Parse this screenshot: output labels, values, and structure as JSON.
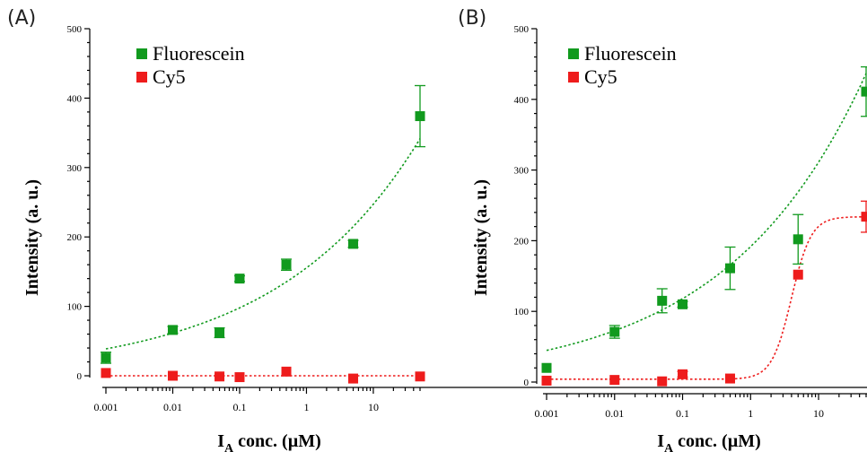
{
  "colors": {
    "fluorescein": "#119a1e",
    "cy5": "#ee1c1c"
  },
  "chart_data": [
    {
      "type": "scatter",
      "panel_label": "(A)",
      "xlabel_main": "I",
      "xlabel_sub": "A",
      "xlabel_rest": " conc. (µM)",
      "ylabel": "Intensity (a. u.)",
      "x_scale": "log",
      "xlim": [
        0.001,
        50
      ],
      "ylim": [
        0,
        500
      ],
      "x_ticks": [
        0.001,
        0.01,
        0.1,
        1,
        10
      ],
      "x_tick_labels": [
        "0.001",
        "0.01",
        "0.1",
        "1",
        "10"
      ],
      "y_ticks": [
        0,
        100,
        200,
        300,
        400,
        500
      ],
      "y_tick_labels": [
        "0",
        "100",
        "200",
        "300",
        "400",
        "500"
      ],
      "legend": {
        "position": "top-left",
        "entries": [
          "Fluorescein",
          "Cy5"
        ]
      },
      "series": [
        {
          "name": "Fluorescein",
          "color": "#119a1e",
          "points": [
            {
              "x": 0.001,
              "y": 26,
              "err": 8
            },
            {
              "x": 0.01,
              "y": 66,
              "err": 5
            },
            {
              "x": 0.05,
              "y": 62,
              "err": 7
            },
            {
              "x": 0.1,
              "y": 140,
              "err": 4
            },
            {
              "x": 0.5,
              "y": 160,
              "err": 8
            },
            {
              "x": 5,
              "y": 190,
              "err": 5
            },
            {
              "x": 50,
              "y": 374,
              "err": 44
            }
          ],
          "fit": {
            "kind": "exp_in_log",
            "a": 38.74,
            "b": 0.2012
          }
        },
        {
          "name": "Cy5",
          "color": "#ee1c1c",
          "points": [
            {
              "x": 0.001,
              "y": 4,
              "err": 0
            },
            {
              "x": 0.01,
              "y": 0,
              "err": 0
            },
            {
              "x": 0.05,
              "y": -1,
              "err": 0
            },
            {
              "x": 0.1,
              "y": -2,
              "err": 0
            },
            {
              "x": 0.5,
              "y": 6,
              "err": 0
            },
            {
              "x": 5,
              "y": -4,
              "err": 0
            },
            {
              "x": 50,
              "y": -1,
              "err": 0
            }
          ],
          "fit": {
            "kind": "constant",
            "value": 0
          }
        }
      ]
    },
    {
      "type": "scatter",
      "panel_label": "(B)",
      "xlabel_main": "I",
      "xlabel_sub": "A",
      "xlabel_rest": " conc. (µM)",
      "ylabel": "Intensity (a. u.)",
      "x_scale": "log",
      "xlim": [
        0.001,
        50
      ],
      "ylim": [
        0,
        500
      ],
      "x_ticks": [
        0.001,
        0.01,
        0.1,
        1,
        10
      ],
      "x_tick_labels": [
        "0.001",
        "0.01",
        "0.1",
        "1",
        "10"
      ],
      "y_ticks": [
        0,
        100,
        200,
        300,
        400,
        500
      ],
      "y_tick_labels": [
        "0",
        "100",
        "200",
        "300",
        "400",
        "500"
      ],
      "legend": {
        "position": "top-left",
        "entries": [
          "Fluorescein",
          "Cy5"
        ]
      },
      "series": [
        {
          "name": "Fluorescein",
          "color": "#119a1e",
          "points": [
            {
              "x": 0.001,
              "y": 20,
              "err": 0
            },
            {
              "x": 0.01,
              "y": 71,
              "err": 9
            },
            {
              "x": 0.05,
              "y": 115,
              "err": 17
            },
            {
              "x": 0.1,
              "y": 110,
              "err": 4
            },
            {
              "x": 0.5,
              "y": 161,
              "err": 30
            },
            {
              "x": 5,
              "y": 202,
              "err": 35
            },
            {
              "x": 50,
              "y": 411,
              "err": 35
            }
          ],
          "fit": {
            "kind": "exp_in_log",
            "a": 44.77,
            "b": 0.2105
          }
        },
        {
          "name": "Cy5",
          "color": "#ee1c1c",
          "points": [
            {
              "x": 0.001,
              "y": 2,
              "err": 0
            },
            {
              "x": 0.01,
              "y": 3,
              "err": 0
            },
            {
              "x": 0.05,
              "y": 1,
              "err": 0
            },
            {
              "x": 0.1,
              "y": 11,
              "err": 4
            },
            {
              "x": 0.5,
              "y": 5,
              "err": 0
            },
            {
              "x": 5,
              "y": 152,
              "err": 0
            },
            {
              "x": 50,
              "y": 234,
              "err": 22
            }
          ],
          "fit": {
            "kind": "hill",
            "bottom": 4,
            "top": 234,
            "x50": 4,
            "n": 3
          }
        }
      ]
    }
  ]
}
